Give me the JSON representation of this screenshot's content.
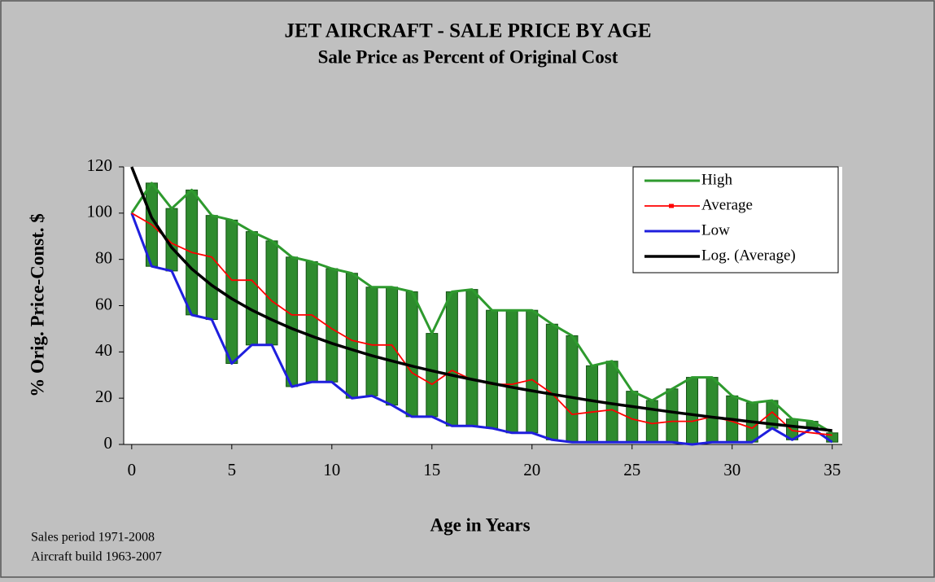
{
  "chart_data": {
    "type": "line",
    "title": "JET AIRCRAFT - SALE PRICE BY AGE",
    "subtitle": "Sale Price as Percent of Original Cost",
    "x_label": "Age in Years",
    "y_label": "% Orig. Price-Const. $",
    "notes": [
      "Sales period 1971-2008",
      "Aircraft build 1963-2007"
    ],
    "x": [
      0,
      1,
      2,
      3,
      4,
      5,
      6,
      7,
      8,
      9,
      10,
      11,
      12,
      13,
      14,
      15,
      16,
      17,
      18,
      19,
      20,
      21,
      22,
      23,
      24,
      25,
      26,
      27,
      28,
      29,
      30,
      31,
      32,
      33,
      34,
      35
    ],
    "series": [
      {
        "name": "High",
        "color": "#2e9a2e",
        "values": [
          100,
          113,
          102,
          110,
          99,
          97,
          92,
          88,
          81,
          79,
          76,
          74,
          68,
          68,
          66,
          48,
          66,
          67,
          58,
          58,
          58,
          52,
          47,
          34,
          36,
          23,
          19,
          24,
          29,
          29,
          21,
          18,
          19,
          11,
          10,
          5
        ]
      },
      {
        "name": "Average",
        "color": "#ff0000",
        "values": [
          100,
          95,
          87,
          83,
          81,
          71,
          71,
          62,
          56,
          56,
          50,
          45,
          43,
          43,
          31,
          26,
          32,
          28,
          26,
          26,
          28,
          22,
          13,
          14,
          15,
          11,
          9,
          10,
          10,
          12,
          10,
          7,
          14,
          6,
          5,
          4
        ]
      },
      {
        "name": "Low",
        "color": "#1f1fdd",
        "values": [
          100,
          77,
          75,
          56,
          54,
          35,
          43,
          43,
          25,
          27,
          27,
          20,
          21,
          17,
          12,
          12,
          8,
          8,
          7,
          5,
          5,
          2,
          1,
          1,
          1,
          1,
          1,
          1,
          0,
          1,
          1,
          1,
          7,
          2,
          7,
          1
        ]
      },
      {
        "name": "Log. (Average)",
        "color": "#000000",
        "values": [
          120,
          98,
          85.1,
          75.9,
          68.8,
          63,
          58.1,
          53.9,
          50.1,
          46.8,
          43.7,
          41,
          38.4,
          36.1,
          33.9,
          31.8,
          29.9,
          28.1,
          26.4,
          24.7,
          23.2,
          21.7,
          20.3,
          18.9,
          17.6,
          16.4,
          15.2,
          14,
          12.9,
          11.8,
          10.8,
          9.8,
          8.8,
          7.9,
          7,
          6
        ]
      }
    ],
    "range_bars": {
      "color": "#2e8b2e"
    },
    "xlim": [
      -0.4,
      35.5
    ],
    "xticks": [
      0,
      5,
      10,
      15,
      20,
      25,
      30,
      35
    ],
    "ylim": [
      0,
      120
    ],
    "yticks": [
      0,
      20,
      40,
      60,
      80,
      100,
      120
    ],
    "grid": false,
    "legend": "upper right"
  }
}
